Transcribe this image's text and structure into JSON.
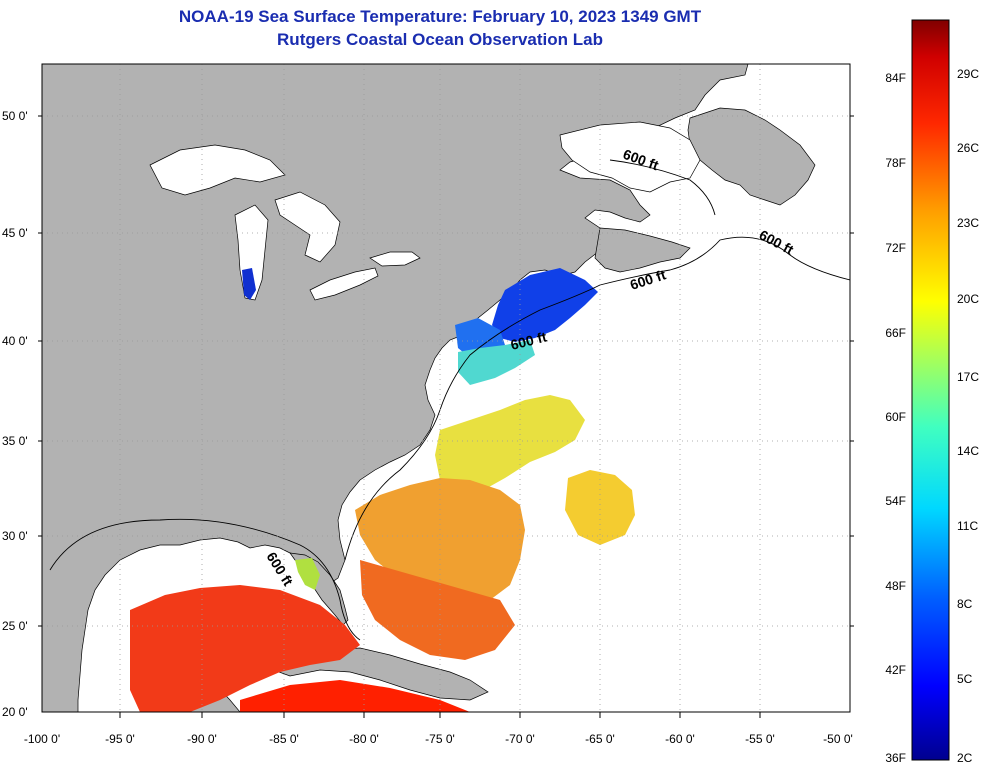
{
  "header": {
    "title": "NOAA-19 Sea Surface Temperature:  February 10, 2023 1349 GMT",
    "subtitle": "Rutgers Coastal Ocean Observation Lab"
  },
  "map": {
    "lat_labels": [
      "50 0'",
      "45 0'",
      "40 0'",
      "35 0'",
      "30 0'",
      "25 0'",
      "20 0'"
    ],
    "lon_labels": [
      "-100 0'",
      "-95 0'",
      "-90 0'",
      "-85 0'",
      "-80 0'",
      "-75 0'",
      "-70 0'",
      "-65 0'",
      "-60 0'",
      "-55 0'",
      "-50 0'"
    ],
    "depth_labels": [
      "600 ft",
      "600 ft",
      "600 ft",
      "600 ft",
      "600 ft"
    ],
    "land_color": "#b2b2b2",
    "water_color": "#ffffff"
  },
  "colorbar": {
    "f_labels": [
      "84F",
      "78F",
      "72F",
      "66F",
      "60F",
      "54F",
      "48F",
      "42F",
      "36F"
    ],
    "c_labels": [
      "29C",
      "26C",
      "23C",
      "20C",
      "17C",
      "14C",
      "11C",
      "8C",
      "5C",
      "2C"
    ]
  }
}
